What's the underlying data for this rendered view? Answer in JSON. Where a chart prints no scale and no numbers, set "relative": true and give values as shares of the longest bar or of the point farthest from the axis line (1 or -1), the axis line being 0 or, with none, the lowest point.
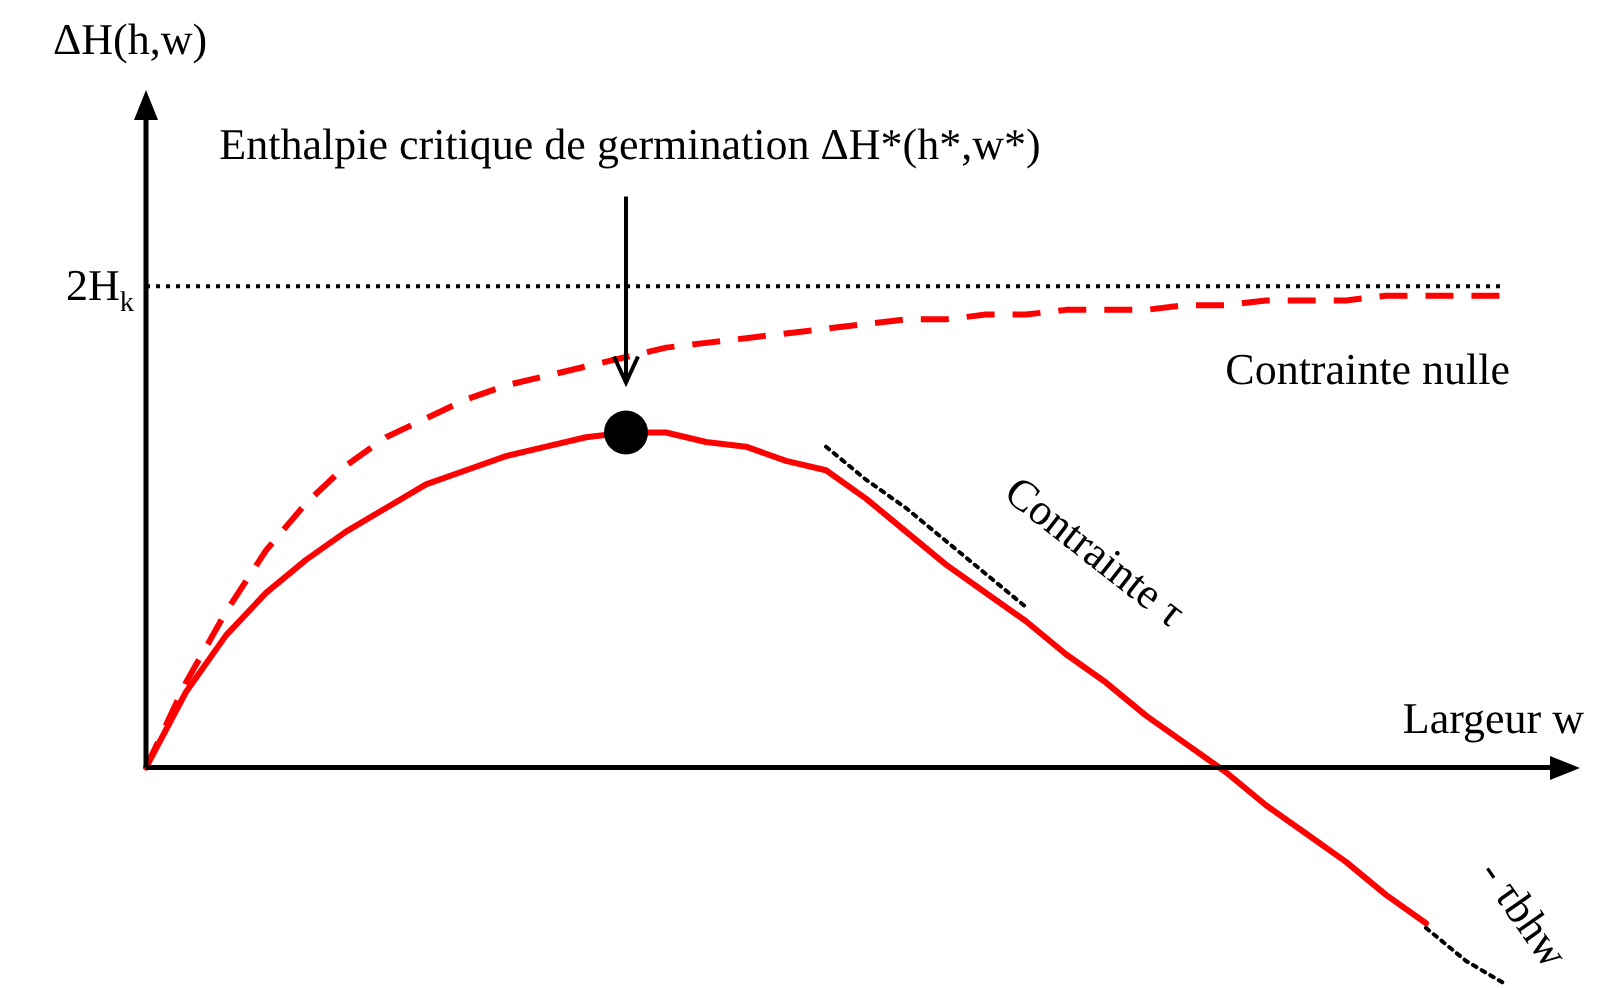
{
  "chart_data": {
    "type": "line",
    "relative": true,
    "xlabel": "Largeur w",
    "categories": [
      null,
      null,
      null,
      null,
      null,
      null,
      null,
      null,
      null,
      null,
      null,
      null,
      null,
      null,
      null,
      null,
      null,
      null,
      null,
      null,
      null,
      null,
      null,
      null,
      null,
      null,
      null,
      null,
      null,
      null,
      null,
      null,
      null,
      null,
      null
    ],
    "series": [
      {
        "name": "Contrainte τ",
        "color": "#ff0000",
        "line_style": "solid",
        "values": [
          0,
          0.16,
          0.28,
          0.37,
          0.44,
          0.5,
          0.55,
          0.6,
          0.63,
          0.66,
          0.68,
          0.7,
          0.71,
          0.71,
          0.69,
          0.68,
          0.65,
          0.63,
          0.57,
          0.5,
          0.43,
          0.37,
          0.31,
          0.24,
          0.18,
          0.11,
          0.05,
          -0.01,
          -0.08,
          -0.14,
          -0.2,
          -0.27,
          -0.33,
          null,
          null
        ]
      },
      {
        "name": "Contrainte nulle",
        "color": "#ff0000",
        "line_style": "dashed",
        "values": [
          0,
          0.18,
          0.33,
          0.46,
          0.56,
          0.64,
          0.7,
          0.74,
          0.78,
          0.81,
          0.83,
          0.85,
          0.87,
          0.89,
          0.9,
          0.91,
          0.92,
          0.93,
          0.94,
          0.95,
          0.95,
          0.96,
          0.96,
          0.97,
          0.97,
          0.97,
          0.98,
          0.98,
          0.99,
          0.99,
          0.99,
          1,
          1,
          1,
          1
        ]
      },
      {
        "name": "- τbhw",
        "color": "#000000",
        "line_style": "dotted",
        "values": [
          null,
          null,
          null,
          null,
          null,
          null,
          null,
          null,
          null,
          null,
          null,
          null,
          null,
          null,
          null,
          null,
          null,
          0.68,
          0.61,
          0.55,
          0.48,
          0.41,
          0.34,
          null,
          null,
          null,
          null,
          null,
          null,
          null,
          null,
          null,
          -0.34,
          -0.41,
          -0.46
        ]
      }
    ],
    "ref_lines": [
      {
        "axis": "y",
        "value": 1.02,
        "label": "2H$_{k}$",
        "color": "#000000",
        "line_style": "dotted"
      }
    ],
    "annotations": [
      "ΔH(h,w)",
      "Enthalpie critique de germination ΔH*(h*,w*)"
    ]
  }
}
